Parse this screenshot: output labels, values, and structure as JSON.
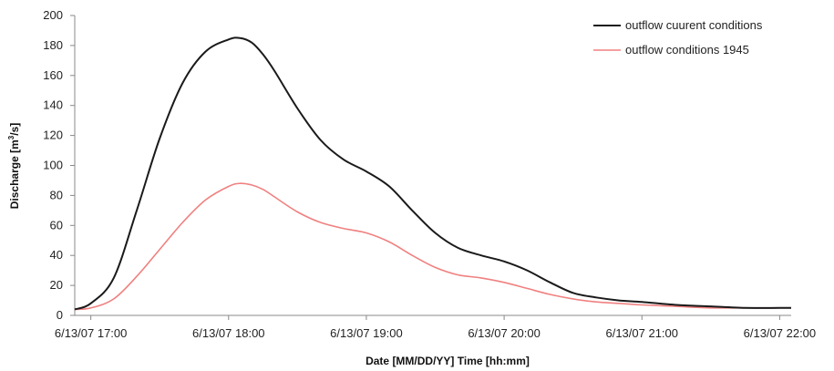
{
  "chart_data": {
    "type": "line",
    "xlabel": "Date [MM/DD/YY] Time [hh:mm]",
    "ylabel": "Discharge [m³/s]",
    "ylabel_parts": {
      "before": "Discharge [m",
      "sup": "3",
      "after": "/s]"
    },
    "ylim": [
      0,
      200
    ],
    "yticks": [
      0,
      20,
      40,
      60,
      80,
      100,
      120,
      140,
      160,
      180,
      200
    ],
    "xlim": [
      "6/13/07 16:53",
      "6/13/07 22:05"
    ],
    "xticks": [
      "6/13/07 17:00",
      "6/13/07 18:00",
      "6/13/07 19:00",
      "6/13/07 20:00",
      "6/13/07 21:00",
      "6/13/07 22:00"
    ],
    "grid": false,
    "legend": "top-right",
    "x": [
      "6/13/07 16:53",
      "6/13/07 17:00",
      "6/13/07 17:10",
      "6/13/07 17:20",
      "6/13/07 17:30",
      "6/13/07 17:40",
      "6/13/07 17:50",
      "6/13/07 18:00",
      "6/13/07 18:05",
      "6/13/07 18:10",
      "6/13/07 18:15",
      "6/13/07 18:20",
      "6/13/07 18:30",
      "6/13/07 18:40",
      "6/13/07 18:50",
      "6/13/07 19:00",
      "6/13/07 19:10",
      "6/13/07 19:20",
      "6/13/07 19:30",
      "6/13/07 19:40",
      "6/13/07 19:50",
      "6/13/07 20:00",
      "6/13/07 20:10",
      "6/13/07 20:20",
      "6/13/07 20:30",
      "6/13/07 20:40",
      "6/13/07 20:50",
      "6/13/07 21:00",
      "6/13/07 21:15",
      "6/13/07 21:30",
      "6/13/07 21:45",
      "6/13/07 22:00",
      "6/13/07 22:05"
    ],
    "series": [
      {
        "name": "outflow cuurent conditions",
        "color": "#1a1a1a",
        "values": [
          4,
          8,
          25,
          70,
          118,
          155,
          176,
          184,
          185,
          182,
          174,
          163,
          138,
          117,
          104,
          96,
          86,
          70,
          55,
          45,
          40,
          36,
          30,
          22,
          15,
          12,
          10,
          9,
          7,
          6,
          5,
          5,
          5
        ]
      },
      {
        "name": "outflow conditions 1945",
        "color": "#f08080",
        "values": [
          4,
          5,
          11,
          26,
          44,
          62,
          77,
          86,
          88,
          87,
          84,
          79,
          69,
          62,
          58,
          55,
          49,
          40,
          32,
          27,
          25,
          22,
          18,
          14,
          11,
          9,
          8,
          7,
          6,
          5,
          5,
          5,
          5
        ]
      }
    ]
  }
}
